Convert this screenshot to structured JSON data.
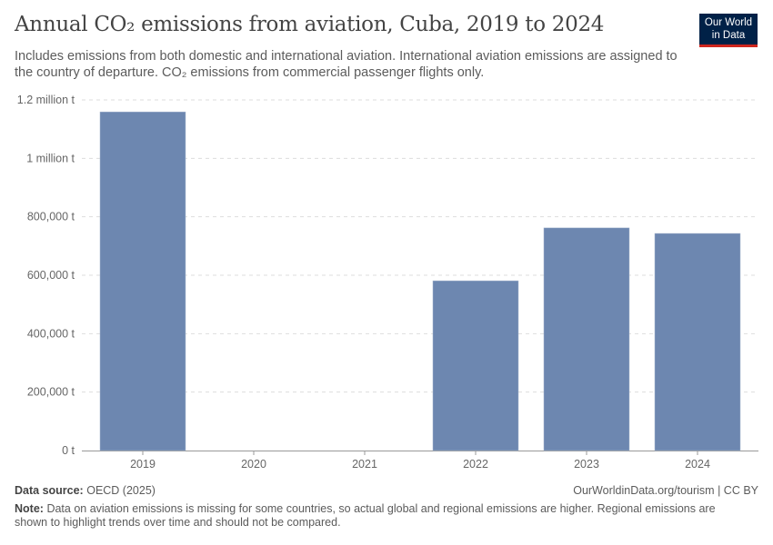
{
  "title": "Annual CO₂ emissions from aviation, Cuba, 2019 to 2024",
  "subtitle": "Includes emissions from both domestic and international aviation. International aviation emissions are assigned to the country of departure. CO₂ emissions from commercial passenger flights only.",
  "logo": "Our World in Data",
  "footer": {
    "source_label": "Data source:",
    "source": "OECD (2025)",
    "url": "OurWorldinData.org/tourism | CC BY",
    "note_label": "Note:",
    "note": "Data on aviation emissions is missing for some countries, so actual global and regional emissions are higher. Regional emissions are shown to highlight trends over time and should not be compared."
  },
  "chart_data": {
    "type": "bar",
    "categories": [
      "2019",
      "2020",
      "2021",
      "2022",
      "2023",
      "2024"
    ],
    "values": [
      1159000,
      null,
      null,
      581000,
      762000,
      743000
    ],
    "ylim": [
      0,
      1200000
    ],
    "yticks": [
      0,
      200000,
      400000,
      600000,
      800000,
      1000000,
      1200000
    ],
    "ytick_labels": [
      "0 t",
      "200,000 t",
      "400,000 t",
      "600,000 t",
      "800,000 t",
      "1 million t",
      "1.2 million t"
    ],
    "grid": true,
    "bar_color": "#6d87b0"
  }
}
